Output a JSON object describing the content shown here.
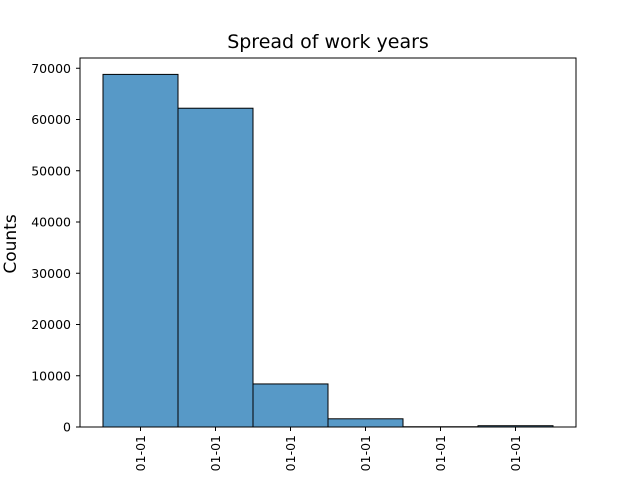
{
  "chart_data": {
    "type": "bar",
    "title": "Spread of work years",
    "xlabel": "",
    "ylabel": "Counts",
    "categories": [
      "01-01",
      "01-01",
      "01-01",
      "01-01",
      "01-01",
      "01-01"
    ],
    "values": [
      68800,
      62200,
      8400,
      1600,
      50,
      250
    ],
    "ylim": [
      0,
      72000
    ],
    "yticks": [
      0,
      10000,
      20000,
      30000,
      40000,
      50000,
      60000,
      70000
    ],
    "ytick_labels": [
      "0",
      "10000",
      "20000",
      "30000",
      "40000",
      "50000",
      "60000",
      "70000"
    ],
    "bar_color": "#5799c7",
    "edge_color": "#000000",
    "grid": false,
    "legend": "none"
  }
}
